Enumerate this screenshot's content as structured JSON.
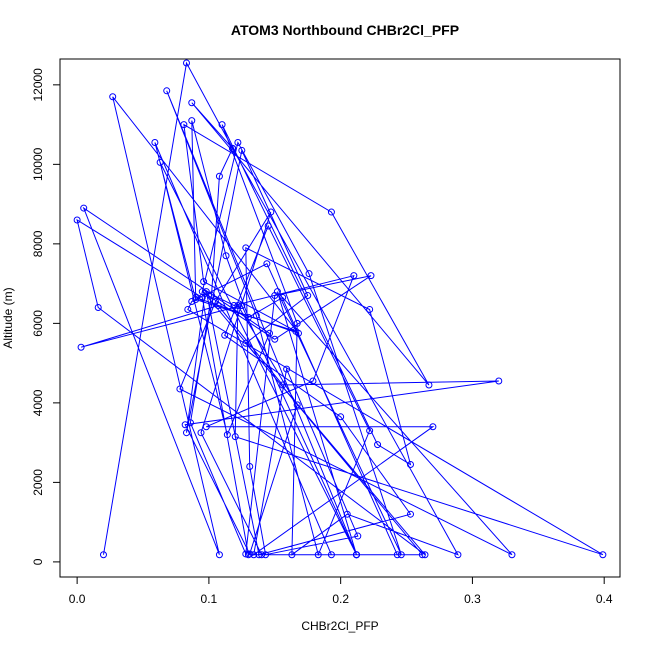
{
  "chart_data": {
    "type": "line",
    "title": "ATOM3 Northbound CHBr2Cl_PFP",
    "xlabel": "CHBr2Cl_PFP",
    "ylabel": "Altitude (m)",
    "xlim": [
      -0.013,
      0.412
    ],
    "ylim": [
      -380,
      12650
    ],
    "x_ticks": [
      0.0,
      0.1,
      0.2,
      0.3,
      0.4
    ],
    "x_tick_labels": [
      "0.0",
      "0.1",
      "0.2",
      "0.3",
      "0.4"
    ],
    "y_ticks": [
      0,
      2000,
      4000,
      6000,
      8000,
      10000,
      12000
    ],
    "y_tick_labels": [
      "0",
      "2000",
      "4000",
      "6000",
      "8000",
      "10000",
      "12000"
    ],
    "grid": false,
    "legend": "none",
    "series_color": "#0000ff",
    "series": [
      {
        "x": [
          0.02,
          0.083,
          0.118,
          0.118,
          0.108,
          0.102,
          0.086,
          0.128,
          0.15,
          0.223,
          0.15,
          0.095,
          0.122,
          0.176,
          0.246,
          0.152,
          0.212,
          0.068,
          0.136,
          0.183,
          0.222,
          0.145,
          0.112,
          0.2,
          0.253,
          0.138,
          0.098,
          0.119,
          0.21,
          0.179,
          0.098,
          0.27,
          0.134,
          0.159,
          0.213,
          0.143,
          0.131,
          0.128,
          0.222,
          0.253,
          0.228,
          0.11,
          0.167,
          0.163,
          0.205,
          0.289,
          0.118,
          0.087,
          0.267,
          0.193,
          0.081,
          0.096,
          0.166,
          0.09,
          0.059,
          0.193,
          0.243,
          0.144,
          0.087,
          0.084,
          0.399,
          0.12,
          0.122,
          0.167,
          0.131,
          0.082,
          0.32,
          0.156,
          0.107,
          0.003,
          0.125,
          0.212,
          0.063,
          0.114,
          0.146,
          0.005,
          0.108,
          0.027,
          0.168,
          0.09,
          0.087,
          0.113,
          0.13,
          0.156,
          0.33,
          0.078,
          0.105,
          0.147,
          0.094,
          0.14,
          0.262,
          0.097,
          0.083,
          0.125,
          0.175,
          0.128,
          0.264,
          0.016,
          0.0,
          0.095,
          0.13,
          0.212
        ],
        "y": [
          180,
          12550,
          10400,
          10400,
          9700,
          6700,
          3500,
          200,
          6700,
          7200,
          5600,
          6800,
          10550,
          7250,
          180,
          6800,
          180,
          11850,
          6200,
          180,
          3300,
          8450,
          5700,
          3650,
          1200,
          180,
          6800,
          6450,
          7200,
          4550,
          3400,
          3400,
          180,
          4850,
          650,
          180,
          2400,
          7900,
          6350,
          2450,
          2950,
          11000,
          6000,
          180,
          1200,
          180,
          10400,
          11550,
          4450,
          8800,
          11000,
          7050,
          5800,
          6600,
          10550,
          180,
          180,
          7500,
          6550,
          6350,
          180,
          3150,
          6450,
          3950,
          200,
          3450,
          4550,
          4450,
          6450,
          5400,
          6450,
          180,
          10050,
          3200,
          5750,
          8900,
          180,
          11700,
          5750,
          6650,
          11100,
          7700,
          6150,
          6650,
          180,
          4350,
          6550,
          8800,
          3250,
          180,
          180,
          6750,
          3250,
          10350,
          6700,
          5500,
          180,
          6400,
          8600,
          6650,
          180,
          180
        ]
      }
    ]
  }
}
